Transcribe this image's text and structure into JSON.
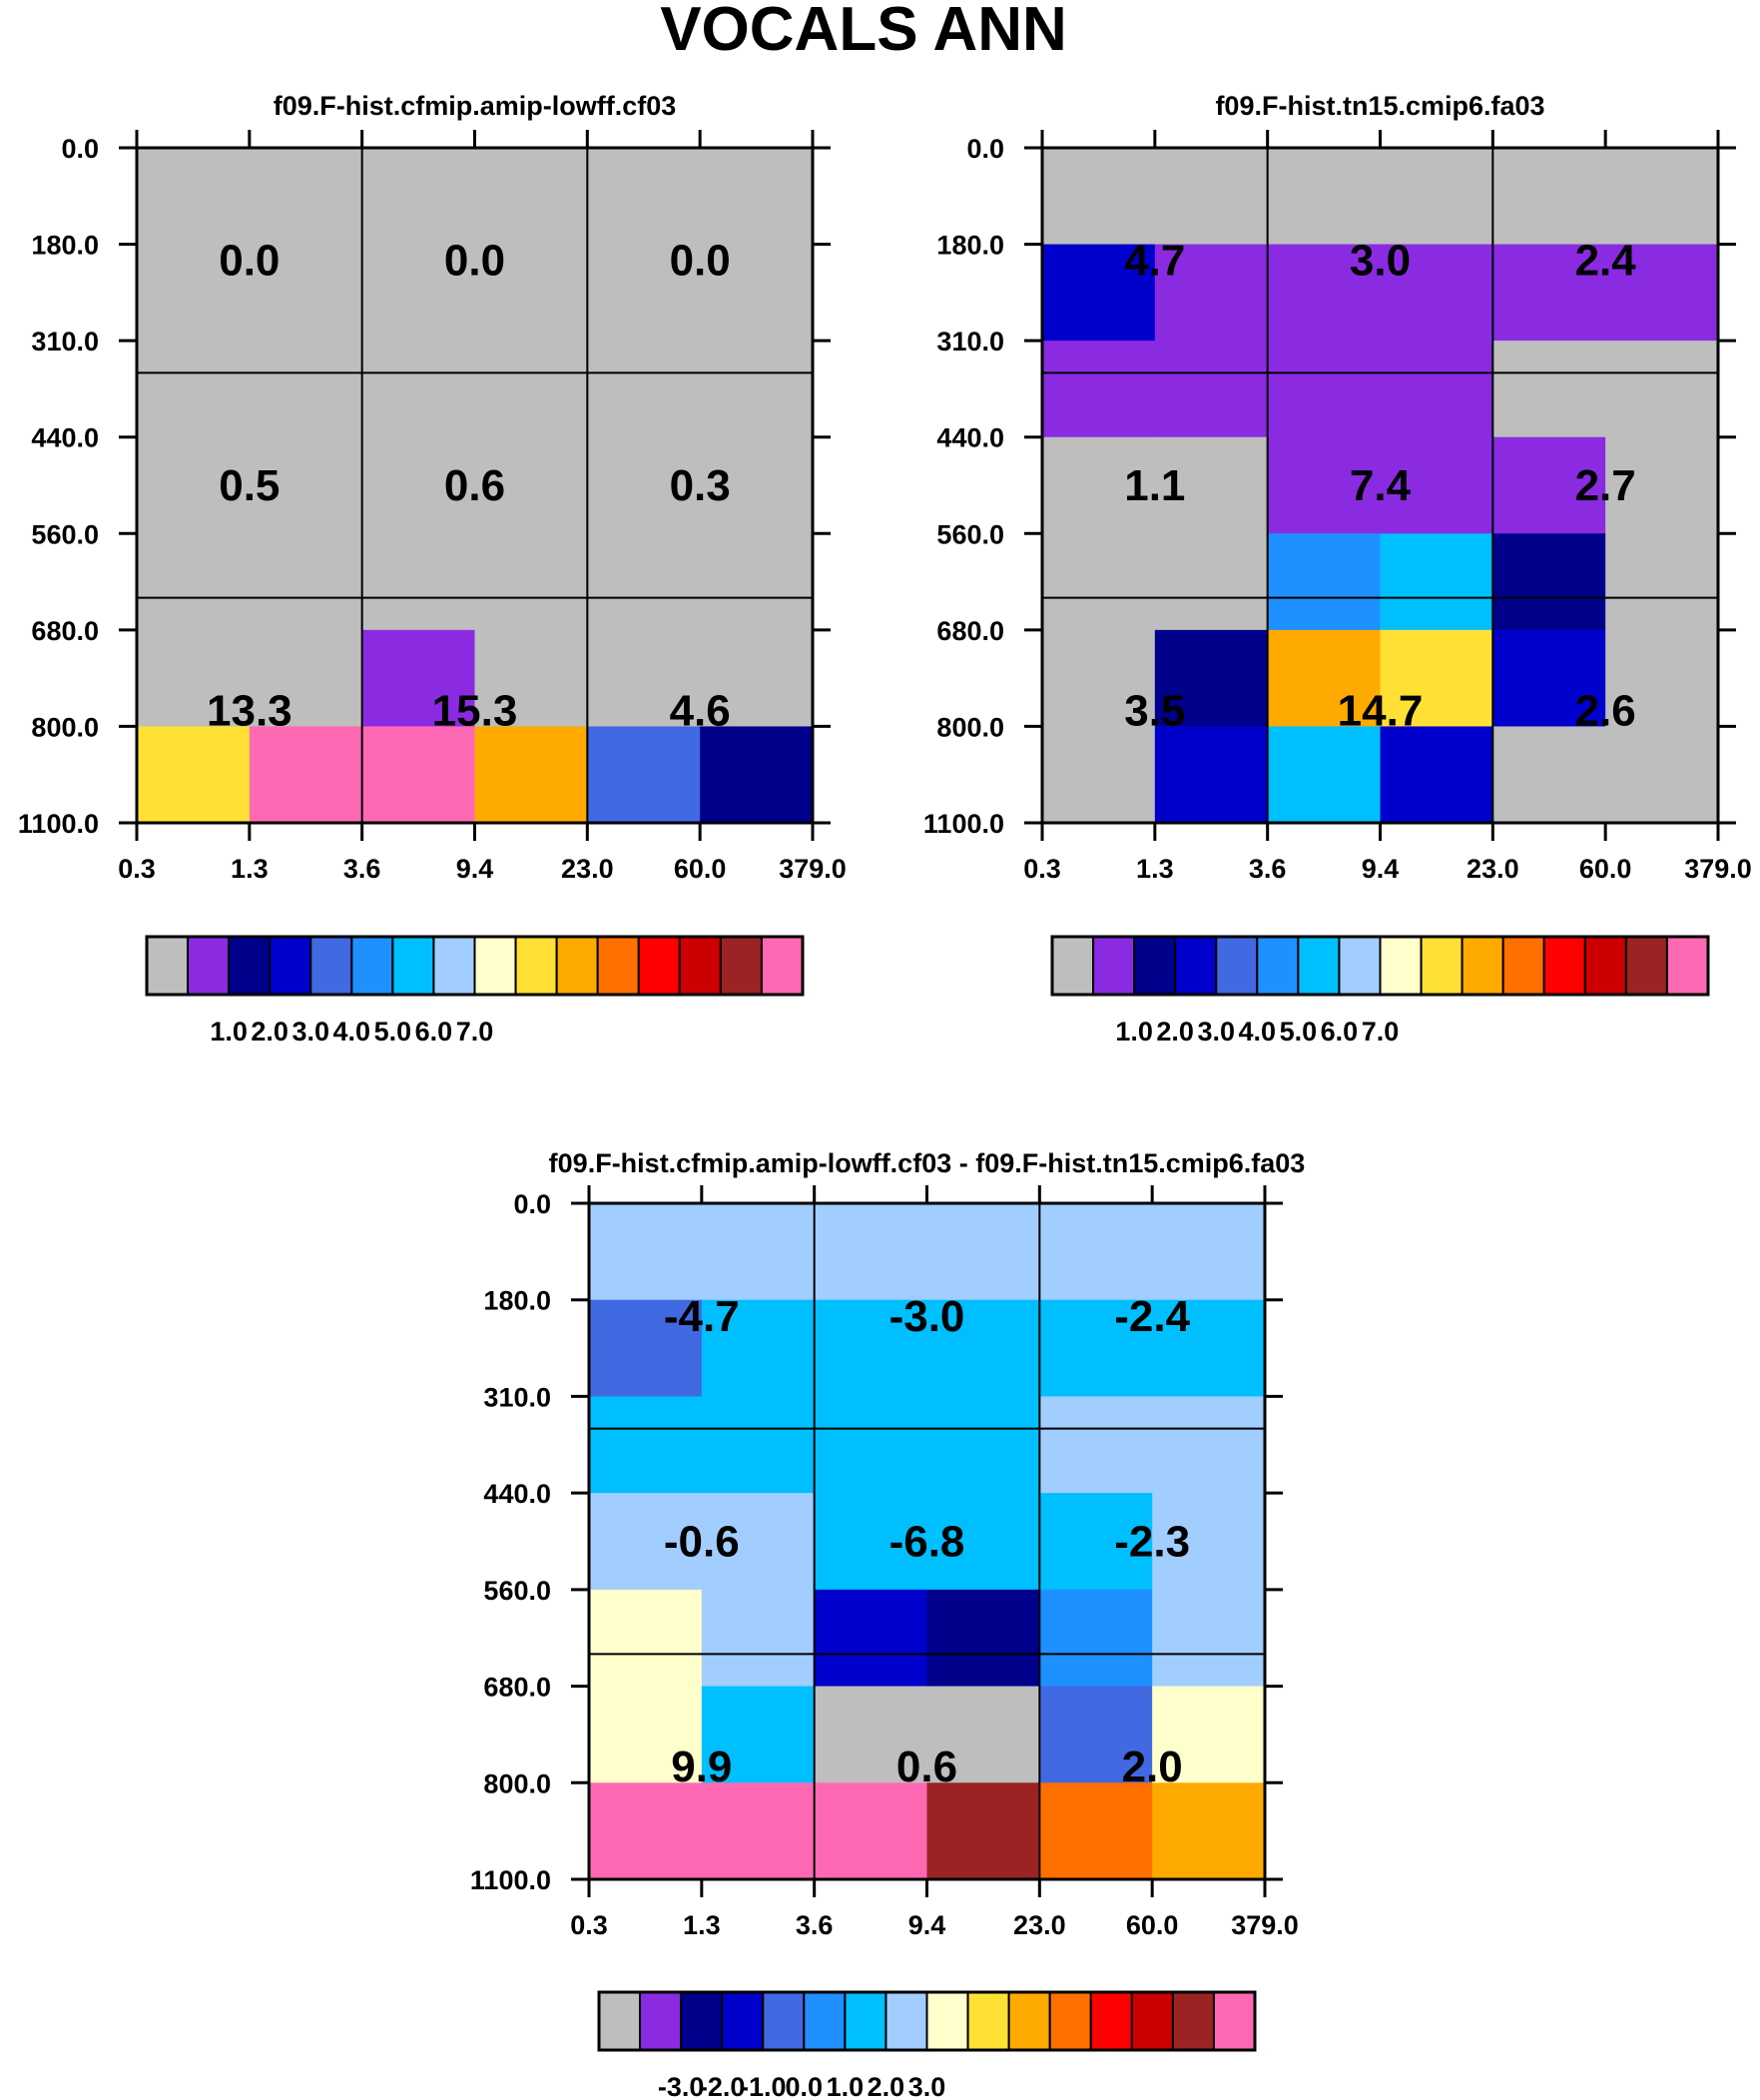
{
  "figure_title": "VOCALS ANN",
  "chart_data": [
    {
      "type": "heatmap",
      "title": "f09.F-hist.cfmip.amip-lowff.cf03",
      "x_ticks": [
        "0.3",
        "1.3",
        "3.6",
        "9.4",
        "23.0",
        "60.0",
        "379.0"
      ],
      "y_ticks": [
        "0.0",
        "180.0",
        "310.0",
        "440.0",
        "560.0",
        "680.0",
        "800.0",
        "1100.0"
      ],
      "cell_labels": [
        [
          "0.0",
          "0.0",
          "0.0"
        ],
        [
          "0.5",
          "0.6",
          "0.3"
        ],
        [
          "13.3",
          "15.3",
          "4.6"
        ]
      ],
      "grid": [
        [
          "gray",
          "gray",
          "gray",
          "gray",
          "gray",
          "gray"
        ],
        [
          "gray",
          "gray",
          "gray",
          "gray",
          "gray",
          "gray"
        ],
        [
          "gray",
          "gray",
          "gray",
          "gray",
          "gray",
          "gray"
        ],
        [
          "gray",
          "gray",
          "gray",
          "gray",
          "gray",
          "gray"
        ],
        [
          "gray",
          "gray",
          "gray",
          "gray",
          "gray",
          "gray"
        ],
        [
          "gray",
          "gray",
          "purple",
          "gray",
          "gray",
          "gray"
        ],
        [
          "yellow",
          "pink",
          "pink",
          "orange",
          "royalblue",
          "darkblue"
        ]
      ],
      "colorbar_labels": [
        "1.0",
        "2.0",
        "3.0",
        "4.0",
        "5.0",
        "6.0",
        "7.0"
      ]
    },
    {
      "type": "heatmap",
      "title": "f09.F-hist.tn15.cmip6.fa03",
      "x_ticks": [
        "0.3",
        "1.3",
        "3.6",
        "9.4",
        "23.0",
        "60.0",
        "379.0"
      ],
      "y_ticks": [
        "0.0",
        "180.0",
        "310.0",
        "440.0",
        "560.0",
        "680.0",
        "800.0",
        "1100.0"
      ],
      "cell_labels": [
        [
          "4.7",
          "3.0",
          "2.4"
        ],
        [
          "1.1",
          "7.4",
          "2.7"
        ],
        [
          "3.5",
          "14.7",
          "2.6"
        ]
      ],
      "grid": [
        [
          "gray",
          "gray",
          "gray",
          "gray",
          "gray",
          "gray"
        ],
        [
          "blue",
          "purple",
          "purple",
          "purple",
          "purple",
          "purple"
        ],
        [
          "purple",
          "purple",
          "purple",
          "purple",
          "gray",
          "gray"
        ],
        [
          "gray",
          "gray",
          "purple",
          "purple",
          "purple",
          "gray"
        ],
        [
          "gray",
          "gray",
          "dodgerblue",
          "cyan",
          "darkblue",
          "gray"
        ],
        [
          "gray",
          "darkblue",
          "orange",
          "yellow",
          "blue",
          "gray"
        ],
        [
          "gray",
          "blue",
          "cyan",
          "blue",
          "gray",
          "gray"
        ]
      ],
      "colorbar_labels": [
        "1.0",
        "2.0",
        "3.0",
        "4.0",
        "5.0",
        "6.0",
        "7.0"
      ]
    },
    {
      "type": "heatmap",
      "title": "f09.F-hist.cfmip.amip-lowff.cf03 - f09.F-hist.tn15.cmip6.fa03",
      "x_ticks": [
        "0.3",
        "1.3",
        "3.6",
        "9.4",
        "23.0",
        "60.0",
        "379.0"
      ],
      "y_ticks": [
        "0.0",
        "180.0",
        "310.0",
        "440.0",
        "560.0",
        "680.0",
        "800.0",
        "1100.0"
      ],
      "cell_labels": [
        [
          "-4.7",
          "-3.0",
          "-2.4"
        ],
        [
          "-0.6",
          "-6.8",
          "-2.3"
        ],
        [
          "9.9",
          "0.6",
          "2.0"
        ]
      ],
      "grid": [
        [
          "lightblue",
          "lightblue",
          "lightblue",
          "lightblue",
          "lightblue",
          "lightblue"
        ],
        [
          "royalblue",
          "cyan",
          "cyan",
          "cyan",
          "cyan",
          "cyan"
        ],
        [
          "cyan",
          "cyan",
          "cyan",
          "cyan",
          "lightblue",
          "lightblue"
        ],
        [
          "lightblue",
          "lightblue",
          "cyan",
          "cyan",
          "cyan",
          "lightblue"
        ],
        [
          "lightyellow",
          "lightblue",
          "blue",
          "darkblue",
          "dodgerblue",
          "lightblue"
        ],
        [
          "lightyellow",
          "cyan",
          "gray",
          "gray",
          "royalblue",
          "lightyellow"
        ],
        [
          "pink",
          "pink",
          "pink",
          "brown",
          "darkorange",
          "orange"
        ]
      ],
      "colorbar_labels": [
        "-3.0",
        "-2.0",
        "-1.0",
        "0.0",
        "1.0",
        "2.0",
        "3.0"
      ]
    }
  ],
  "colors": {
    "gray": "#bebebe",
    "purple": "#8a2be2",
    "darkblue": "#00008b",
    "blue": "#0000cd",
    "royalblue": "#4169e1",
    "dodgerblue": "#1e90ff",
    "cyan": "#00bfff",
    "lightblue": "#a2cdff",
    "lightyellow": "#ffffcc",
    "yellow": "#ffe135",
    "orange": "#ffaa00",
    "darkorange": "#ff7000",
    "red": "#ff0000",
    "darkred": "#cc0000",
    "brown": "#9b2323",
    "pink": "#ff69b4"
  },
  "colorbar_order": [
    "gray",
    "purple",
    "darkblue",
    "blue",
    "royalblue",
    "dodgerblue",
    "cyan",
    "lightblue",
    "lightyellow",
    "yellow",
    "orange",
    "darkorange",
    "red",
    "darkred",
    "brown",
    "pink"
  ]
}
